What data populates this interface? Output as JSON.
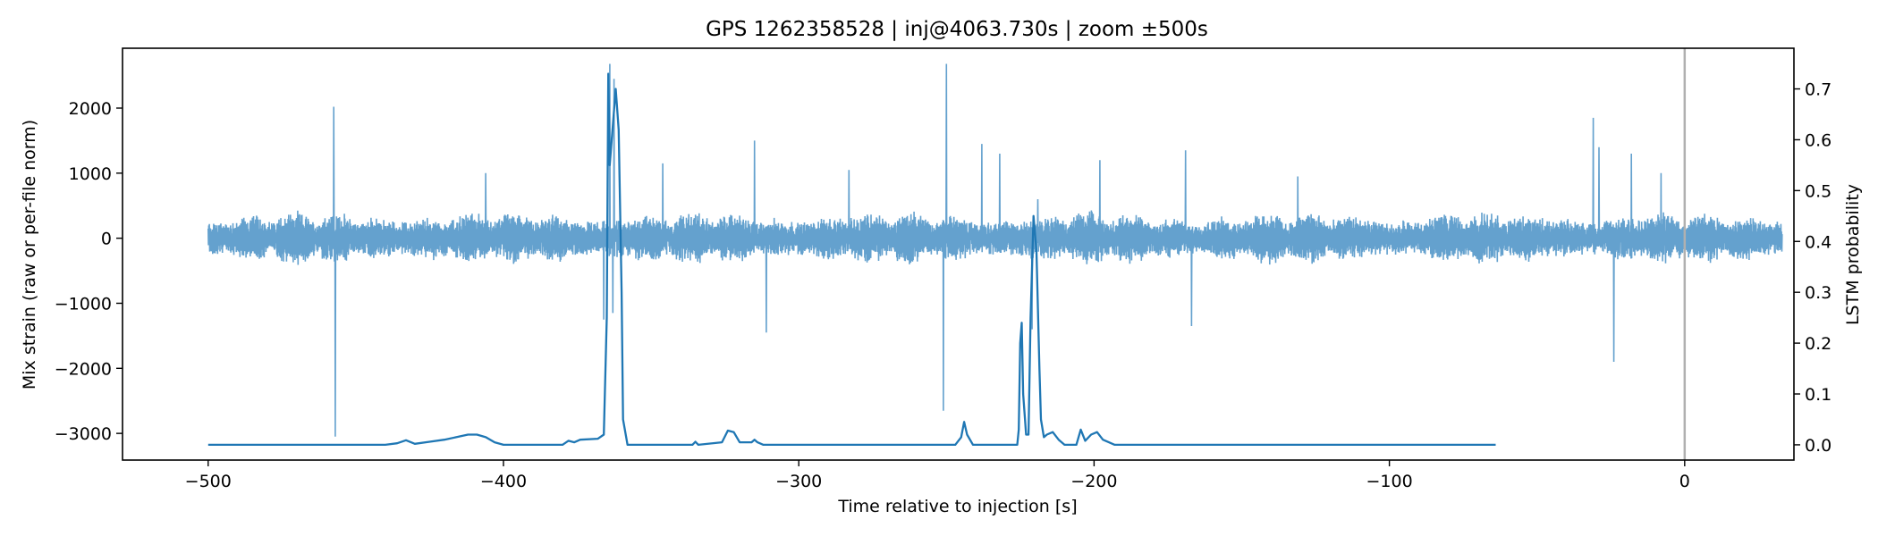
{
  "chart_data": {
    "type": "line",
    "title": "GPS 1262358528 | inj@4063.730s | zoom ±500s",
    "xlabel": "Time relative to injection [s]",
    "ylabel_left": "Mix strain (raw or per-file norm)",
    "ylabel_right": "LSTM probability",
    "xlim": [
      -529,
      37
    ],
    "ylim_left": [
      -3410,
      2920
    ],
    "ylim_right": [
      -0.03,
      0.78
    ],
    "x_ticks": [
      {
        "value": -500,
        "label": "−500"
      },
      {
        "value": -400,
        "label": "−400"
      },
      {
        "value": -300,
        "label": "−300"
      },
      {
        "value": -200,
        "label": "−200"
      },
      {
        "value": -100,
        "label": "−100"
      },
      {
        "value": 0,
        "label": "0"
      }
    ],
    "y_ticks_left": [
      {
        "value": 2000,
        "label": "2000"
      },
      {
        "value": 1000,
        "label": "1000"
      },
      {
        "value": 0,
        "label": "0"
      },
      {
        "value": -1000,
        "label": "−1000"
      },
      {
        "value": -2000,
        "label": "−2000"
      },
      {
        "value": -3000,
        "label": "−3000"
      }
    ],
    "y_ticks_right": [
      {
        "value": 0.0,
        "label": "0.0"
      },
      {
        "value": 0.1,
        "label": "0.1"
      },
      {
        "value": 0.2,
        "label": "0.2"
      },
      {
        "value": 0.3,
        "label": "0.3"
      },
      {
        "value": 0.4,
        "label": "0.4"
      },
      {
        "value": 0.5,
        "label": "0.5"
      },
      {
        "value": 0.6,
        "label": "0.6"
      },
      {
        "value": 0.7,
        "label": "0.7"
      }
    ],
    "injection_line_x": 0,
    "strain_series": {
      "color": "#5c9ccb",
      "x_range": [
        -500,
        33
      ],
      "noise_amplitude": 380,
      "spikes": [
        {
          "x": -457.5,
          "y": 2020
        },
        {
          "x": -457.0,
          "y": -3050
        },
        {
          "x": -364.0,
          "y": 2680
        },
        {
          "x": -362.5,
          "y": 2450
        },
        {
          "x": -366.0,
          "y": -1250
        },
        {
          "x": -363.0,
          "y": -1150
        },
        {
          "x": -315.0,
          "y": 1500
        },
        {
          "x": -311.0,
          "y": -1450
        },
        {
          "x": -250.0,
          "y": 2680
        },
        {
          "x": -251.0,
          "y": -2650
        },
        {
          "x": -238.0,
          "y": 1450
        },
        {
          "x": -232.0,
          "y": 1300
        },
        {
          "x": -219.0,
          "y": 600
        },
        {
          "x": -221.0,
          "y": -1400
        },
        {
          "x": -198.0,
          "y": 1200
        },
        {
          "x": -169.0,
          "y": 1350
        },
        {
          "x": -167.0,
          "y": -1350
        },
        {
          "x": -31.0,
          "y": 1850
        },
        {
          "x": -29.0,
          "y": 1400
        },
        {
          "x": -24.0,
          "y": -1900
        },
        {
          "x": -18.0,
          "y": 1300
        },
        {
          "x": -406.0,
          "y": 1000
        },
        {
          "x": -346.0,
          "y": 1150
        },
        {
          "x": -283.0,
          "y": 1050
        },
        {
          "x": -131.0,
          "y": 950
        },
        {
          "x": -8.0,
          "y": 1000
        }
      ]
    },
    "prob_series": {
      "color": "#1f77b4",
      "x": [
        -500,
        -490,
        -440,
        -436,
        -433,
        -430,
        -425,
        -420,
        -416,
        -412,
        -409,
        -406,
        -403,
        -400,
        -380,
        -378,
        -376,
        -374,
        -368,
        -366,
        -365,
        -364.5,
        -364,
        -362,
        -361,
        -360,
        -359.5,
        -358,
        -350,
        -336,
        -335,
        -334,
        -326,
        -324,
        -322,
        -320,
        -316,
        -315,
        -314,
        -312,
        -300,
        -247,
        -245,
        -244,
        -243,
        -241,
        -226,
        -225.5,
        -225,
        -224.5,
        -224,
        -223,
        -222.2,
        -221.5,
        -220.5,
        -219.5,
        -218.5,
        -218,
        -217,
        -216,
        -214,
        -212,
        -210,
        -206,
        -204.5,
        -203,
        -201,
        -199,
        -197,
        -193,
        -150,
        -64
      ],
      "y": [
        0.0,
        0.0,
        0.0,
        0.003,
        0.009,
        0.002,
        0.006,
        0.01,
        0.015,
        0.02,
        0.02,
        0.015,
        0.005,
        0.0,
        0.0,
        0.008,
        0.005,
        0.01,
        0.012,
        0.02,
        0.25,
        0.73,
        0.55,
        0.7,
        0.62,
        0.3,
        0.05,
        0.0,
        0.0,
        0.0,
        0.006,
        0.0,
        0.005,
        0.028,
        0.025,
        0.005,
        0.005,
        0.01,
        0.005,
        0.0,
        0.0,
        0.0,
        0.015,
        0.045,
        0.02,
        0.0,
        0.0,
        0.03,
        0.2,
        0.24,
        0.1,
        0.02,
        0.02,
        0.25,
        0.45,
        0.38,
        0.15,
        0.05,
        0.015,
        0.02,
        0.025,
        0.01,
        0.0,
        0.0,
        0.03,
        0.008,
        0.02,
        0.025,
        0.01,
        0.0,
        0.0,
        0.0
      ]
    }
  }
}
